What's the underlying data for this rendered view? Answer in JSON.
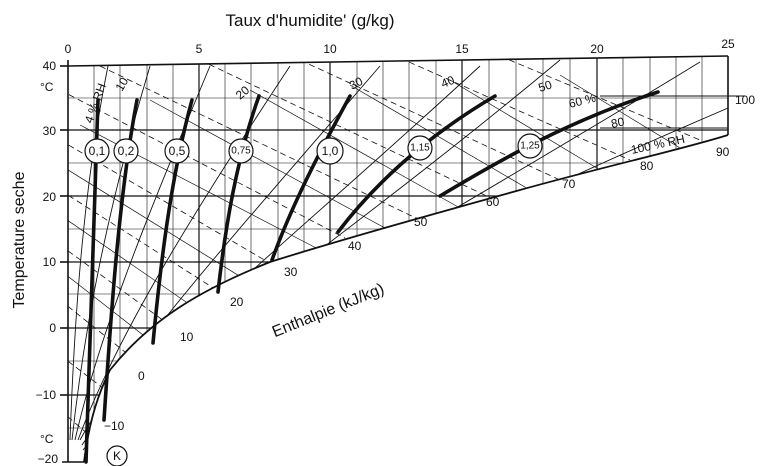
{
  "title_top": "Taux d'humidite' (g/kg)",
  "y_axis_title": "Temperature seche",
  "enthalpy_axis_title": "Enthalpie (kJ/kg)",
  "x_ticks": [
    "0",
    "5",
    "10",
    "15",
    "20",
    "25"
  ],
  "y_ticks": [
    "40",
    "30",
    "20",
    "10",
    "0",
    "−10",
    "−20"
  ],
  "unit_top": "°C",
  "unit_bottom": "°C",
  "rh_labels": {
    "rh4": "4 % RH",
    "rh10": "10",
    "rh20": "20",
    "rh30": "30",
    "rh40": "40",
    "rh50": "50",
    "rh60": "60 %",
    "rh80": "80",
    "rh100": "100 % RH"
  },
  "enthalpy_labels": [
    "−10",
    "0",
    "10",
    "20",
    "30",
    "40",
    "50",
    "60",
    "70",
    "80",
    "90",
    "100"
  ],
  "k_values": [
    "0,1",
    "0,2",
    "0,5",
    "0,75",
    "1,0",
    "1,15",
    "1,25"
  ],
  "k_marker": "K"
}
